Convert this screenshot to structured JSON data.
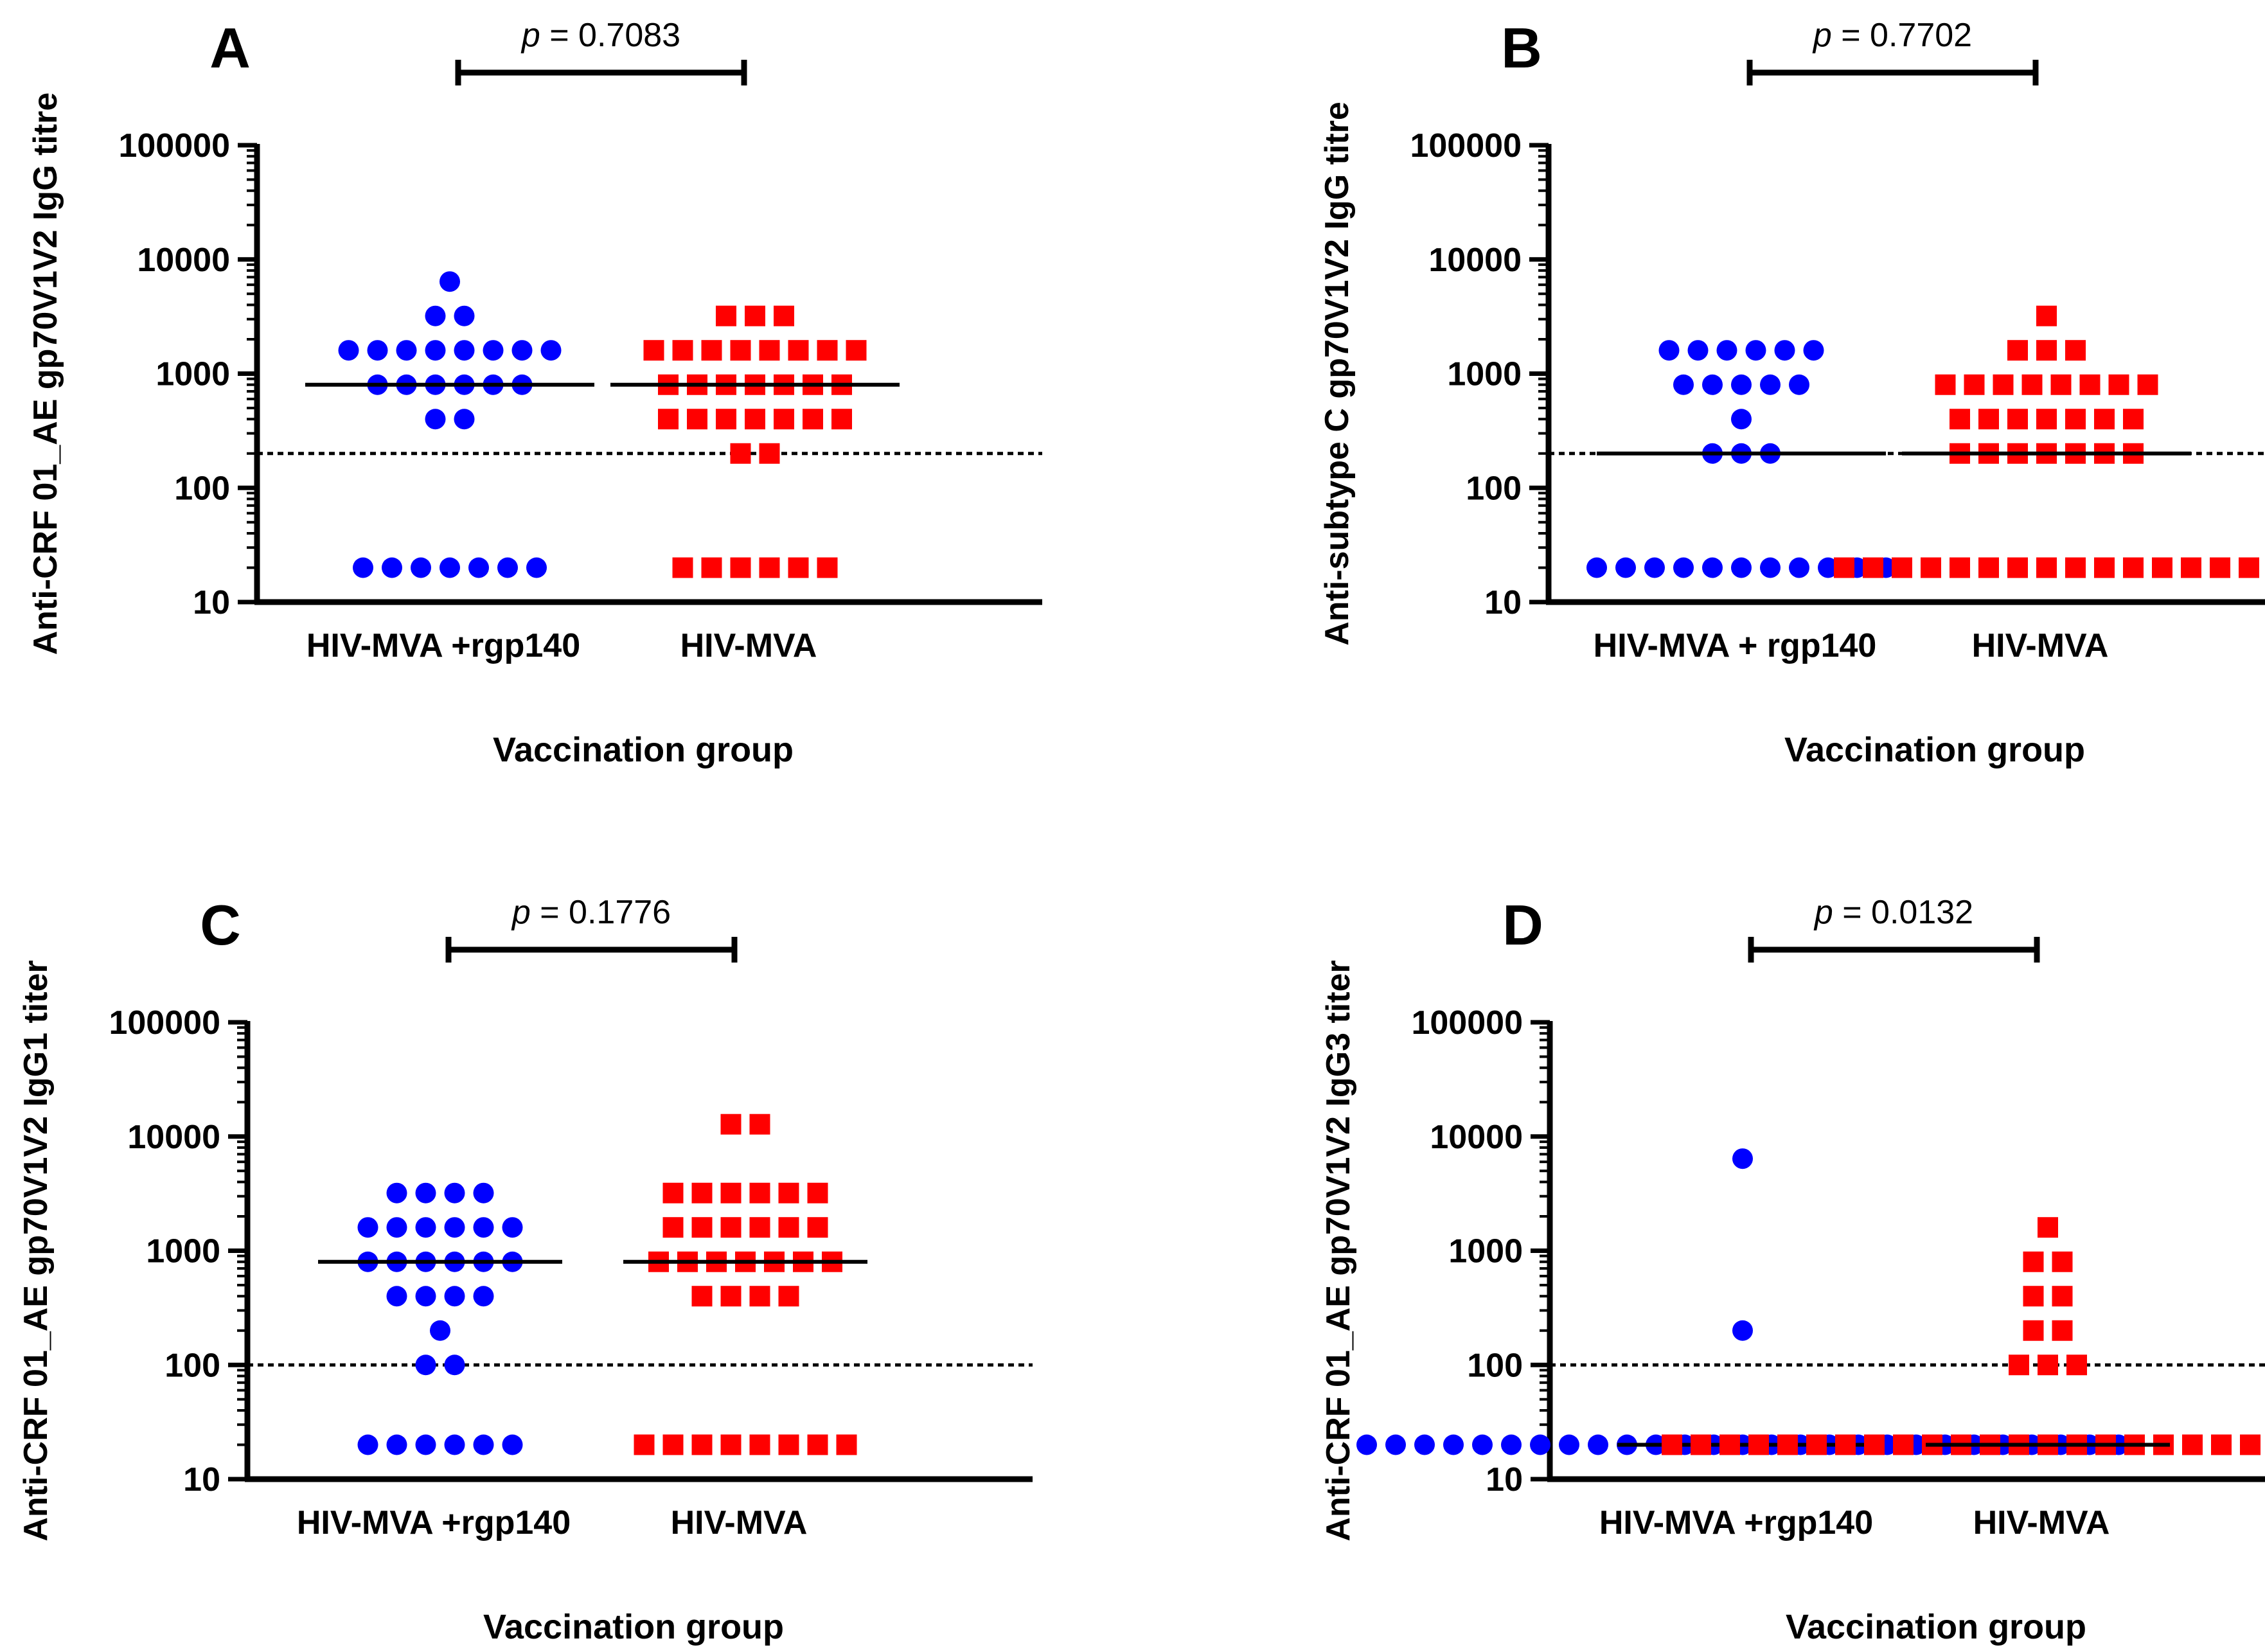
{
  "figure_title": "",
  "colors": {
    "group1": "#0000ff",
    "group2": "#ff0000",
    "axis": "#000000"
  },
  "chart_data": [
    {
      "id": "A",
      "panel_label": "A",
      "type": "scatter",
      "ylabel": "Anti-CRF 01_AE gp70V1V2 IgG titre",
      "xlabel": "Vaccination group",
      "yscale": "log",
      "ylim": [
        10,
        100000
      ],
      "yticks": [
        "10",
        "100",
        "1000",
        "10000",
        "100000"
      ],
      "cutoff": 200,
      "pvalue_prefix": "p",
      "pvalue_text": " = 0.7083",
      "groups": [
        {
          "name": "HIV-MVA +rgp140",
          "marker": "circle",
          "rows": [
            {
              "value": 6400,
              "count": 1
            },
            {
              "value": 3200,
              "count": 2
            },
            {
              "value": 1600,
              "count": 8
            },
            {
              "value": 800,
              "count": 6
            },
            {
              "value": 400,
              "count": 2
            },
            {
              "value": 20,
              "count": 7
            }
          ],
          "median": 800
        },
        {
          "name": "HIV-MVA",
          "marker": "square",
          "rows": [
            {
              "value": 3200,
              "count": 3
            },
            {
              "value": 1600,
              "count": 8
            },
            {
              "value": 800,
              "count": 7
            },
            {
              "value": 400,
              "count": 7
            },
            {
              "value": 200,
              "count": 2
            },
            {
              "value": 20,
              "count": 6
            }
          ],
          "median": 800
        }
      ]
    },
    {
      "id": "B",
      "panel_label": "B",
      "type": "scatter",
      "ylabel": "Anti-subtype C gp70V1V2  IgG titre",
      "xlabel": "Vaccination group",
      "yscale": "log",
      "ylim": [
        10,
        100000
      ],
      "yticks": [
        "10",
        "100",
        "1000",
        "10000",
        "100000"
      ],
      "cutoff": 200,
      "pvalue_prefix": "p",
      "pvalue_text": " = 0.7702",
      "groups": [
        {
          "name": "HIV-MVA + rgp140",
          "marker": "circle",
          "rows": [
            {
              "value": 1600,
              "count": 6
            },
            {
              "value": 800,
              "count": 5
            },
            {
              "value": 400,
              "count": 1
            },
            {
              "value": 200,
              "count": 3
            },
            {
              "value": 20,
              "count": 11
            }
          ],
          "median": 200
        },
        {
          "name": "HIV-MVA",
          "marker": "square",
          "rows": [
            {
              "value": 3200,
              "count": 1
            },
            {
              "value": 1600,
              "count": 3
            },
            {
              "value": 800,
              "count": 8
            },
            {
              "value": 400,
              "count": 7
            },
            {
              "value": 200,
              "count": 7
            },
            {
              "value": 20,
              "count": 15
            }
          ],
          "median": 200
        }
      ]
    },
    {
      "id": "C",
      "panel_label": "C",
      "type": "scatter",
      "ylabel": "Anti-CRF 01_AE gp70V1V2 IgG1 titer",
      "xlabel": "Vaccination group",
      "yscale": "log",
      "ylim": [
        10,
        100000
      ],
      "yticks": [
        "10",
        "100",
        "1000",
        "10000",
        "100000"
      ],
      "cutoff": 100,
      "pvalue_prefix": "p",
      "pvalue_text": " = 0.1776",
      "groups": [
        {
          "name": "HIV-MVA +rgp140",
          "marker": "circle",
          "rows": [
            {
              "value": 3200,
              "count": 4
            },
            {
              "value": 1600,
              "count": 6
            },
            {
              "value": 800,
              "count": 6
            },
            {
              "value": 400,
              "count": 4
            },
            {
              "value": 200,
              "count": 1
            },
            {
              "value": 100,
              "count": 2
            },
            {
              "value": 20,
              "count": 6
            }
          ],
          "median": 800
        },
        {
          "name": "HIV-MVA",
          "marker": "square",
          "rows": [
            {
              "value": 12800,
              "count": 2
            },
            {
              "value": 3200,
              "count": 6
            },
            {
              "value": 1600,
              "count": 6
            },
            {
              "value": 800,
              "count": 7
            },
            {
              "value": 400,
              "count": 4
            },
            {
              "value": 20,
              "count": 8
            }
          ],
          "median": 800
        }
      ]
    },
    {
      "id": "D",
      "panel_label": "D",
      "type": "scatter",
      "ylabel": "Anti-CRF 01_AE gp70V1V2 IgG3 titer",
      "xlabel": "Vaccination group",
      "yscale": "log",
      "ylim": [
        10,
        100000
      ],
      "yticks": [
        "10",
        "100",
        "1000",
        "10000",
        "100000"
      ],
      "cutoff": 100,
      "pvalue_prefix": "p",
      "pvalue_text": " = 0.0132",
      "groups": [
        {
          "name": "HIV-MVA +rgp140",
          "marker": "circle",
          "rows": [
            {
              "value": 6400,
              "count": 1
            },
            {
              "value": 200,
              "count": 1
            },
            {
              "value": 20,
              "count": 27
            }
          ],
          "median": 20
        },
        {
          "name": "HIV-MVA",
          "marker": "square",
          "rows": [
            {
              "value": 1600,
              "count": 1
            },
            {
              "value": 800,
              "count": 2
            },
            {
              "value": 400,
              "count": 2
            },
            {
              "value": 200,
              "count": 2
            },
            {
              "value": 100,
              "count": 3
            },
            {
              "value": 20,
              "count": 27
            }
          ],
          "median": 20
        }
      ]
    }
  ]
}
